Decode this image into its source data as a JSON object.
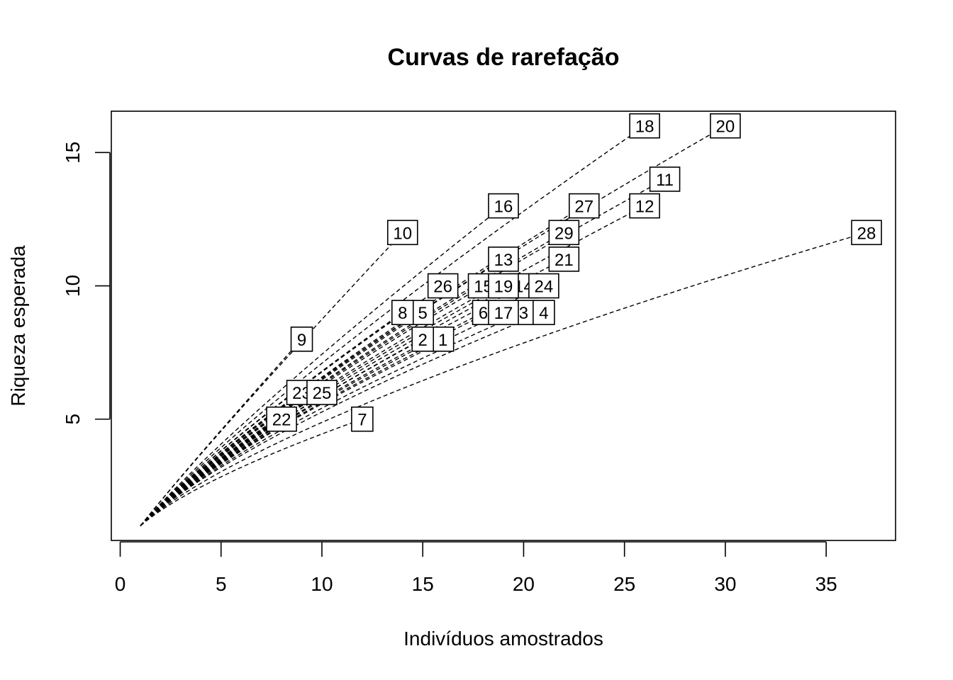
{
  "chart_data": {
    "type": "line",
    "title": "Curvas de rarefação",
    "xlabel": "Indivíduos amostrados",
    "ylabel": "Riqueza esperada",
    "xlim": [
      -0.44,
      38.44
    ],
    "ylim": [
      0.45,
      16.55
    ],
    "x_ticks": [
      0,
      5,
      10,
      15,
      20,
      25,
      30,
      35
    ],
    "y_ticks": [
      5,
      10,
      15
    ],
    "grid": false,
    "line_style": "dashed",
    "series": [
      {
        "name": "1",
        "n": 16,
        "s": 8
      },
      {
        "name": "2",
        "n": 15,
        "s": 8
      },
      {
        "name": "3",
        "n": 20,
        "s": 9
      },
      {
        "name": "4",
        "n": 21,
        "s": 9
      },
      {
        "name": "5",
        "n": 15,
        "s": 9
      },
      {
        "name": "6",
        "n": 18,
        "s": 9
      },
      {
        "name": "7",
        "n": 12,
        "s": 5
      },
      {
        "name": "8",
        "n": 14,
        "s": 9
      },
      {
        "name": "9",
        "n": 9,
        "s": 8
      },
      {
        "name": "10",
        "n": 14,
        "s": 12
      },
      {
        "name": "11",
        "n": 27,
        "s": 14
      },
      {
        "name": "12",
        "n": 26,
        "s": 13
      },
      {
        "name": "13",
        "n": 19,
        "s": 11
      },
      {
        "name": "14",
        "n": 20,
        "s": 10
      },
      {
        "name": "15",
        "n": 18,
        "s": 10
      },
      {
        "name": "16",
        "n": 19,
        "s": 13
      },
      {
        "name": "17",
        "n": 19,
        "s": 9
      },
      {
        "name": "18",
        "n": 26,
        "s": 16
      },
      {
        "name": "19",
        "n": 19,
        "s": 10
      },
      {
        "name": "20",
        "n": 30,
        "s": 16
      },
      {
        "name": "21",
        "n": 22,
        "s": 11
      },
      {
        "name": "22",
        "n": 8,
        "s": 5
      },
      {
        "name": "23",
        "n": 9,
        "s": 6
      },
      {
        "name": "24",
        "n": 21,
        "s": 10
      },
      {
        "name": "25",
        "n": 10,
        "s": 6
      },
      {
        "name": "26",
        "n": 16,
        "s": 10
      },
      {
        "name": "27",
        "n": 23,
        "s": 13
      },
      {
        "name": "28",
        "n": 37,
        "s": 12
      },
      {
        "name": "29",
        "n": 22,
        "s": 12
      }
    ]
  }
}
